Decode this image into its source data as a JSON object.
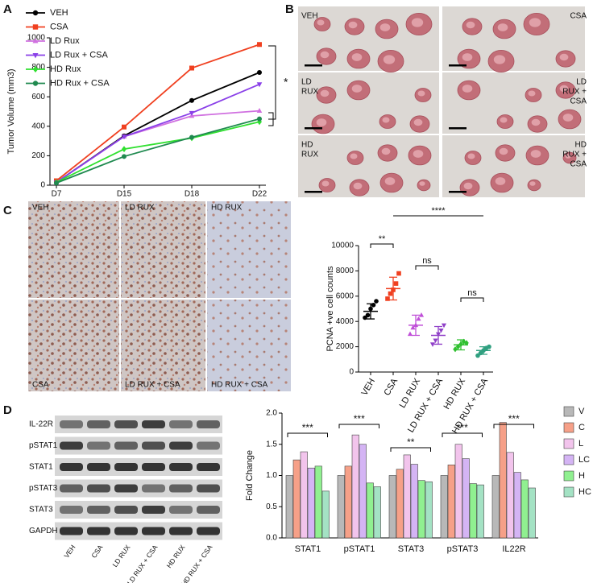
{
  "panels": {
    "a": "A",
    "b": "B",
    "c": "C",
    "d": "D"
  },
  "photos": {
    "labels": [
      [
        "VEH"
      ],
      [
        "CSA"
      ],
      [
        "LD",
        "RUX"
      ],
      [
        "LD",
        "RUX +",
        "CSA"
      ],
      [
        "HD",
        "RUX"
      ],
      [
        "HD",
        "RUX +",
        "CSA"
      ]
    ]
  },
  "histology": {
    "labels": [
      "VEH",
      "LD RUX",
      "HD RUX",
      "CSA",
      "LD RUX + CSA",
      "HD RUX + CSA"
    ]
  },
  "blot": {
    "rows": [
      "IL-22R",
      "pSTAT1",
      "STAT1",
      "pSTAT3",
      "STAT3",
      "GAPDH"
    ],
    "lanes": [
      "VEH",
      "CSA",
      "LD RUX",
      "LD RUX + CSA",
      "HD RUX",
      "HD RUX + CSA"
    ]
  },
  "chart_data": [
    {
      "type": "line",
      "y_label": "Tumor Volume (mm3)",
      "categories": [
        "D7",
        "D15",
        "D18",
        "D22"
      ],
      "series": [
        {
          "name": "VEH",
          "color": "#000000",
          "marker": "circle",
          "values": [
            20,
            335,
            575,
            765
          ]
        },
        {
          "name": "CSA",
          "color": "#f04020",
          "marker": "square",
          "values": [
            30,
            395,
            795,
            955
          ]
        },
        {
          "name": "LD Rux",
          "color": "#d070e0",
          "marker": "triangle-up",
          "values": [
            20,
            330,
            470,
            505
          ]
        },
        {
          "name": "LD Rux + CSA",
          "color": "#8a40e8",
          "marker": "triangle-down",
          "values": [
            20,
            330,
            490,
            685
          ]
        },
        {
          "name": "HD Rux",
          "color": "#30e030",
          "marker": "diamond",
          "values": [
            20,
            245,
            320,
            430
          ]
        },
        {
          "name": "HD Rux + CSA",
          "color": "#208a50",
          "marker": "circle",
          "values": [
            15,
            195,
            325,
            450
          ]
        }
      ],
      "ylim": [
        0,
        1000
      ],
      "yticks": [
        0,
        200,
        400,
        600,
        800,
        1000
      ],
      "annotations": [
        "*"
      ]
    },
    {
      "type": "dot",
      "y_label": "PCNA +ve cell counts",
      "categories": [
        "VEH",
        "CSA",
        "LD RUX",
        "LD RUX + CSA",
        "HD RUX",
        "HD RUX + CSA"
      ],
      "groups": [
        {
          "color": "#000000",
          "marker": "circle",
          "points": [
            4300,
            4500,
            5000,
            5300,
            5600
          ],
          "mean": 4800,
          "sd": 600
        },
        {
          "color": "#f04020",
          "marker": "square",
          "points": [
            5800,
            6200,
            6500,
            7000,
            7800
          ],
          "mean": 6600,
          "sd": 900
        },
        {
          "color": "#c050d8",
          "marker": "triangle-up",
          "points": [
            3000,
            3500,
            3700,
            4200,
            4500
          ],
          "mean": 3700,
          "sd": 800
        },
        {
          "color": "#9040c8",
          "marker": "triangle-down",
          "points": [
            2200,
            2500,
            3000,
            3300,
            3700
          ],
          "mean": 2900,
          "sd": 700
        },
        {
          "color": "#30c030",
          "marker": "diamond",
          "points": [
            1800,
            2000,
            2200,
            2400,
            2300
          ],
          "mean": 2150,
          "sd": 400
        },
        {
          "color": "#30a080",
          "marker": "circle",
          "points": [
            1300,
            1500,
            1700,
            1900,
            2000
          ],
          "mean": 1700,
          "sd": 300
        }
      ],
      "ylim": [
        0,
        10000
      ],
      "yticks": [
        0,
        2000,
        4000,
        6000,
        8000,
        10000
      ],
      "annotations": [
        "**",
        "****",
        "ns",
        "ns"
      ]
    },
    {
      "type": "bar",
      "y_label": "Fold Change",
      "categories": [
        "STAT1",
        "pSTAT1",
        "STAT3",
        "pSTAT3",
        "IL22R"
      ],
      "series": [
        {
          "name": "V",
          "color": "#b8b8b8",
          "values": [
            1.0,
            1.0,
            1.0,
            1.0,
            1.0
          ]
        },
        {
          "name": "C",
          "color": "#f6a088",
          "values": [
            1.25,
            1.15,
            1.1,
            1.17,
            1.85
          ]
        },
        {
          "name": "L",
          "color": "#f2c4ec",
          "values": [
            1.38,
            1.65,
            1.33,
            1.5,
            1.37
          ]
        },
        {
          "name": "LC",
          "color": "#d4b4f4",
          "values": [
            1.12,
            1.5,
            1.18,
            1.27,
            1.05
          ]
        },
        {
          "name": "H",
          "color": "#90f090",
          "values": [
            1.15,
            0.88,
            0.92,
            0.87,
            0.93
          ]
        },
        {
          "name": "HC",
          "color": "#a4e2c4",
          "values": [
            0.75,
            0.82,
            0.9,
            0.85,
            0.8
          ]
        }
      ],
      "ylim": [
        0,
        2
      ],
      "yticks": [
        {
          "value": 0,
          "label": "0.0"
        },
        0.5,
        {
          "value": 1,
          "label": "1.0"
        },
        1.5,
        {
          "value": 2,
          "label": "2.0"
        }
      ],
      "annotations": [
        "***",
        "***",
        "**",
        "***",
        "***"
      ]
    }
  ]
}
